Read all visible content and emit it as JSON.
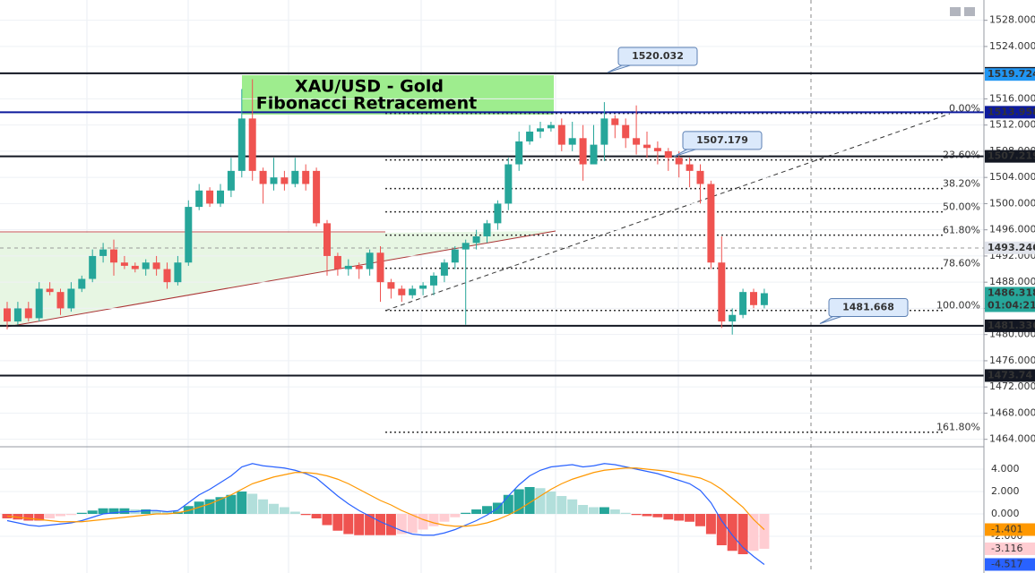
{
  "chart_data": [
    {
      "type": "candlestick",
      "title": "XAU/USD - Gold",
      "subtitle": "Fibonacci Retracement",
      "ylim": [
        1463.0,
        1531.1
      ],
      "yticks": [
        {
          "value": 1464,
          "label": "1464.000"
        },
        {
          "value": 1468,
          "label": "1468.000"
        },
        {
          "value": 1472,
          "label": "1472.000"
        },
        {
          "value": 1476,
          "label": "1476.000"
        },
        {
          "value": 1480,
          "label": "1480.000"
        },
        {
          "value": 1484,
          "label": "1484.000"
        },
        {
          "value": 1488,
          "label": "1488.000"
        },
        {
          "value": 1492,
          "label": "1492.000"
        },
        {
          "value": 1496,
          "label": "1496.000"
        },
        {
          "value": 1500,
          "label": "1500.000"
        },
        {
          "value": 1504,
          "label": "1504.000"
        },
        {
          "value": 1508,
          "label": "1508.000"
        },
        {
          "value": 1512,
          "label": "1512.000"
        },
        {
          "value": 1516,
          "label": "1516.000"
        },
        {
          "value": 1520,
          "label": "1520.000"
        },
        {
          "value": 1524,
          "label": "1524.000"
        },
        {
          "value": 1528,
          "label": "1528.000"
        }
      ],
      "up_color": "#26a69a",
      "down_color": "#ef5350",
      "open": [
        1484,
        1482,
        1484,
        1482.5,
        1487,
        1486.5,
        1484,
        1487,
        1488.5,
        1492,
        1493,
        1491,
        1490.5,
        1490,
        1491,
        1490,
        1488,
        1491,
        1499.5,
        1502,
        1500,
        1502,
        1505,
        1513,
        1505,
        1503,
        1504,
        1503,
        1505,
        1505,
        1497,
        1492,
        1490,
        1490.5,
        1490,
        1492.5,
        1488,
        1487,
        1486,
        1487,
        1487.5,
        1489,
        1491,
        1493,
        1494,
        1495,
        1497,
        1500,
        1506,
        1509.5,
        1511,
        1511.5,
        1512,
        1509,
        1510,
        1506,
        1509,
        1513,
        1512,
        1510,
        1509,
        1508.5,
        1508,
        1507,
        1506,
        1505,
        1503,
        1491,
        1482,
        1483,
        1486.5,
        1484.5
      ],
      "high": [
        1485,
        1485,
        1485,
        1488,
        1488,
        1487,
        1488,
        1489,
        1493,
        1494,
        1494.5,
        1492,
        1491,
        1491.5,
        1492,
        1491,
        1492,
        1500.5,
        1503,
        1502.5,
        1503,
        1507,
        1517.5,
        1519,
        1505.5,
        1507,
        1505,
        1507,
        1506,
        1505.5,
        1497.5,
        1492.5,
        1491.5,
        1491,
        1493,
        1493.5,
        1488.5,
        1487.5,
        1487.5,
        1488,
        1489.5,
        1491.5,
        1493.5,
        1494.5,
        1496,
        1497.5,
        1500.5,
        1507,
        1511,
        1512,
        1512.5,
        1512.5,
        1513,
        1512.5,
        1512,
        1512,
        1515.5,
        1513.5,
        1513,
        1515,
        1511,
        1509.5,
        1508.5,
        1508,
        1507,
        1506,
        1503.5,
        1495,
        1484,
        1487,
        1487,
        1487
      ],
      "low": [
        1480.8,
        1481.5,
        1482,
        1482,
        1486,
        1483,
        1483.5,
        1486.5,
        1488,
        1491,
        1489,
        1490,
        1489.5,
        1489,
        1489,
        1487,
        1487.5,
        1490.5,
        1499,
        1499.5,
        1499.5,
        1501,
        1504,
        1503.5,
        1500,
        1502,
        1502,
        1502.5,
        1502,
        1496.5,
        1489,
        1489,
        1489,
        1488.5,
        1489,
        1485,
        1485.5,
        1485,
        1485.5,
        1486,
        1486,
        1488,
        1490,
        1481.5,
        1493,
        1494,
        1496,
        1499,
        1505,
        1509,
        1510,
        1511,
        1508,
        1508,
        1503.5,
        1506,
        1506.5,
        1510,
        1508.5,
        1507.5,
        1507,
        1506,
        1505,
        1504,
        1502.5,
        1500,
        1490,
        1481,
        1480,
        1482.5,
        1484,
        1484
      ],
      "close": [
        1482,
        1484,
        1482.5,
        1487,
        1486.5,
        1484,
        1487,
        1488.5,
        1492,
        1493,
        1491,
        1490.5,
        1490,
        1491,
        1490,
        1488,
        1491,
        1499.5,
        1502,
        1500,
        1502,
        1505,
        1513,
        1505,
        1503,
        1504,
        1503,
        1505,
        1503,
        1497,
        1492,
        1490,
        1490.5,
        1490,
        1492.5,
        1488,
        1487,
        1486,
        1487,
        1487.5,
        1489,
        1491,
        1493,
        1494,
        1495,
        1497,
        1500,
        1506,
        1509.5,
        1511,
        1511.5,
        1512,
        1509,
        1510,
        1506,
        1509,
        1513,
        1512,
        1510,
        1509,
        1508.5,
        1508,
        1507,
        1506,
        1505,
        1503,
        1491,
        1482,
        1483,
        1486.5,
        1484.5,
        1486.318
      ],
      "levels": [
        {
          "value": 1519.907,
          "color": "#131722"
        },
        {
          "value": 1513.958,
          "color": "#0d1a9c"
        },
        {
          "value": 1507.219,
          "color": "#131722"
        },
        {
          "value": 1481.336,
          "color": "#131722"
        },
        {
          "value": 1473.74,
          "color": "#131722"
        }
      ],
      "markers": [
        {
          "value": 1519.724,
          "color": "#2196f3"
        },
        {
          "value": 1493.246,
          "color": "#e0e3eb"
        }
      ],
      "countdown": "01:04:21",
      "fib": [
        {
          "label": "0.00%",
          "value": 1513.78
        },
        {
          "label": "23.60%",
          "value": 1506.68
        },
        {
          "label": "38.20%",
          "value": 1502.29
        },
        {
          "label": "50.00%",
          "value": 1498.74
        },
        {
          "label": "61.80%",
          "value": 1495.18
        },
        {
          "label": "78.60%",
          "value": 1490.12
        },
        {
          "label": "100.00%",
          "value": 1483.69
        },
        {
          "label": "161.80%",
          "value": 1465.09
        }
      ],
      "callouts": [
        1520.032,
        1507.179,
        1481.668
      ]
    },
    {
      "type": "macd",
      "ylim": [
        -5.28,
        5.92
      ],
      "yticks": [
        {
          "value": 4,
          "label": "4.000"
        },
        {
          "value": 2,
          "label": "2.000"
        },
        {
          "value": 0,
          "label": "0.000"
        },
        {
          "value": -2,
          "label": "-2.000"
        }
      ],
      "histogram": {
        "values": [
          -0.4,
          -0.5,
          -0.6,
          -0.6,
          -0.4,
          -0.2,
          -0.1,
          0.1,
          0.3,
          0.5,
          0.5,
          0.5,
          0.4,
          0.4,
          0.3,
          0.2,
          0.2,
          0.7,
          1.1,
          1.3,
          1.5,
          1.7,
          2.0,
          1.8,
          1.3,
          0.9,
          0.6,
          0.2,
          -0.1,
          -0.4,
          -1.0,
          -1.5,
          -1.8,
          -1.9,
          -1.9,
          -1.9,
          -1.9,
          -1.8,
          -1.7,
          -1.4,
          -1.1,
          -0.7,
          -0.3,
          0.1,
          0.4,
          0.7,
          1.0,
          1.7,
          2.2,
          2.4,
          2.3,
          2.0,
          1.6,
          1.3,
          0.8,
          0.6,
          0.6,
          0.4,
          0.1,
          -0.1,
          -0.2,
          -0.3,
          -0.5,
          -0.6,
          -0.7,
          -1.1,
          -1.8,
          -2.8,
          -3.3,
          -3.6,
          -3.3,
          -3.116
        ],
        "colors": [
          "#26a69a",
          "#b2dfdb",
          "#ef5350",
          "#ffcdd2"
        ]
      },
      "series": [
        {
          "color": "#2962ff",
          "values": [
            -0.6,
            -0.8,
            -1.0,
            -1.1,
            -1.0,
            -0.9,
            -0.8,
            -0.6,
            -0.3,
            0.0,
            0.1,
            0.2,
            0.2,
            0.3,
            0.3,
            0.2,
            0.3,
            1.0,
            1.7,
            2.2,
            2.8,
            3.4,
            4.2,
            4.5,
            4.3,
            4.2,
            4.1,
            3.9,
            3.6,
            3.2,
            2.4,
            1.6,
            0.9,
            0.3,
            -0.2,
            -0.7,
            -1.1,
            -1.5,
            -1.8,
            -1.9,
            -1.9,
            -1.7,
            -1.4,
            -1.0,
            -0.6,
            -0.1,
            0.5,
            1.6,
            2.6,
            3.4,
            3.9,
            4.2,
            4.3,
            4.4,
            4.2,
            4.3,
            4.5,
            4.4,
            4.2,
            4.0,
            3.8,
            3.6,
            3.3,
            3.0,
            2.7,
            2.1,
            1.0,
            -0.6,
            -1.9,
            -3.0,
            -3.8,
            -4.517
          ]
        },
        {
          "color": "#ff9800",
          "values": [
            -0.2,
            -0.3,
            -0.4,
            -0.5,
            -0.6,
            -0.7,
            -0.7,
            -0.7,
            -0.6,
            -0.5,
            -0.4,
            -0.3,
            -0.2,
            -0.1,
            0.0,
            0.0,
            0.1,
            0.3,
            0.6,
            0.9,
            1.3,
            1.7,
            2.2,
            2.7,
            3.0,
            3.3,
            3.5,
            3.7,
            3.7,
            3.6,
            3.4,
            3.1,
            2.7,
            2.2,
            1.7,
            1.2,
            0.8,
            0.3,
            -0.1,
            -0.5,
            -0.8,
            -1.0,
            -1.1,
            -1.1,
            -1.0,
            -0.8,
            -0.5,
            -0.1,
            0.4,
            1.0,
            1.6,
            2.2,
            2.7,
            3.1,
            3.4,
            3.7,
            3.9,
            4.0,
            4.1,
            4.1,
            4.0,
            3.9,
            3.8,
            3.6,
            3.4,
            3.2,
            2.8,
            2.2,
            1.4,
            0.6,
            -0.5,
            -1.401
          ]
        }
      ]
    }
  ]
}
